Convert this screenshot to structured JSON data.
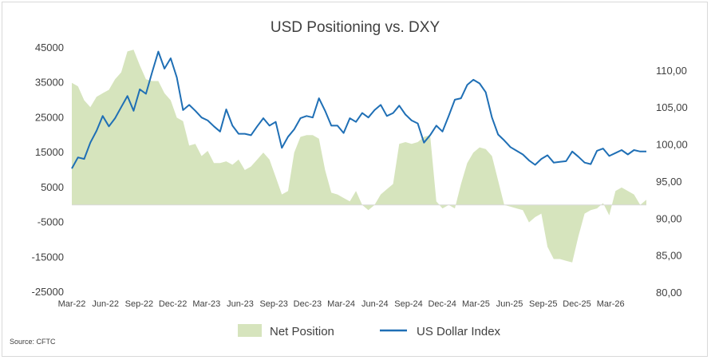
{
  "chart_data": {
    "type": "area+line",
    "title": "USD Positioning vs. DXY",
    "source": "Source: CFTC",
    "colors": {
      "net_position_fill": "#d6e4bd",
      "dxy_line": "#1f6fb5"
    },
    "left_axis": {
      "ylim": [
        -25000,
        45000
      ],
      "ticks": [
        "45000",
        "35000",
        "25000",
        "15000",
        "5000",
        "-5000",
        "-15000",
        "-25000"
      ]
    },
    "right_axis": {
      "ylim": [
        80,
        113
      ],
      "ticks": [
        "110,00",
        "105,00",
        "100,00",
        "95,00",
        "90,00",
        "85,00",
        "80,00"
      ]
    },
    "x_tick_labels": [
      "Mar-22",
      "Jun-22",
      "Sep-22",
      "Dec-22",
      "Mar-23",
      "Jun-23",
      "Sep-23",
      "Dec-23",
      "Mar-24",
      "Jun-24",
      "Sep-24",
      "Dec-24",
      "Mar-25",
      "Jun-25",
      "Sep-25",
      "Dec-25",
      "Mar-26"
    ],
    "grid": false,
    "legend": {
      "position": "bottom",
      "entries": [
        "Net Position",
        "US Dollar Index"
      ]
    },
    "series": [
      {
        "name": "Net Position",
        "axis": "left",
        "style": "area",
        "points": [
          [
            0,
            35000
          ],
          [
            1,
            34000
          ],
          [
            2,
            30000
          ],
          [
            3,
            28000
          ],
          [
            4,
            31000
          ],
          [
            5,
            32000
          ],
          [
            6,
            33000
          ],
          [
            7,
            36000
          ],
          [
            8,
            38000
          ],
          [
            9,
            44000
          ],
          [
            10,
            44500
          ],
          [
            11,
            40000
          ],
          [
            12,
            36000
          ],
          [
            13,
            35500
          ],
          [
            14,
            35500
          ],
          [
            15,
            32000
          ],
          [
            16,
            30000
          ],
          [
            17,
            25000
          ],
          [
            18,
            24000
          ],
          [
            19,
            17000
          ],
          [
            20,
            17500
          ],
          [
            21,
            14000
          ],
          [
            22,
            15500
          ],
          [
            23,
            12000
          ],
          [
            24,
            12000
          ],
          [
            25,
            12500
          ],
          [
            26,
            11500
          ],
          [
            27,
            13000
          ],
          [
            28,
            10000
          ],
          [
            29,
            11000
          ],
          [
            30,
            13000
          ],
          [
            31,
            15000
          ],
          [
            32,
            13000
          ],
          [
            33,
            8000
          ],
          [
            34,
            3000
          ],
          [
            35,
            4000
          ],
          [
            36,
            15000
          ],
          [
            37,
            19500
          ],
          [
            38,
            20000
          ],
          [
            39,
            20000
          ],
          [
            40,
            19000
          ],
          [
            41,
            10000
          ],
          [
            42,
            3500
          ],
          [
            43,
            3000
          ],
          [
            44,
            2000
          ],
          [
            45,
            1000
          ],
          [
            46,
            4000
          ],
          [
            47,
            0
          ],
          [
            48,
            -1500
          ],
          [
            49,
            0
          ],
          [
            50,
            3000
          ],
          [
            51,
            4500
          ],
          [
            52,
            6000
          ],
          [
            53,
            17500
          ],
          [
            54,
            18000
          ],
          [
            55,
            17500
          ],
          [
            56,
            18000
          ],
          [
            57,
            19500
          ],
          [
            58,
            20000
          ],
          [
            59,
            1000
          ],
          [
            60,
            -1000
          ],
          [
            61,
            0
          ],
          [
            62,
            -1000
          ],
          [
            63,
            6000
          ],
          [
            64,
            12000
          ],
          [
            65,
            15000
          ],
          [
            66,
            16500
          ],
          [
            67,
            16000
          ],
          [
            68,
            14000
          ],
          [
            69,
            7000
          ],
          [
            70,
            0
          ],
          [
            71,
            -500
          ],
          [
            72,
            -1000
          ],
          [
            73,
            -1500
          ],
          [
            74,
            -5000
          ],
          [
            75,
            -3500
          ],
          [
            76,
            -2500
          ],
          [
            77,
            -12000
          ],
          [
            78,
            -15500
          ],
          [
            79,
            -15500
          ],
          [
            80,
            -16000
          ],
          [
            81,
            -16500
          ],
          [
            82,
            -9000
          ],
          [
            83,
            -2500
          ],
          [
            84,
            -1500
          ],
          [
            85,
            -1000
          ],
          [
            86,
            500
          ],
          [
            87,
            -3000
          ],
          [
            88,
            4000
          ],
          [
            89,
            5000
          ],
          [
            90,
            4000
          ],
          [
            91,
            3000
          ],
          [
            92,
            0
          ],
          [
            93,
            1500
          ]
        ]
      },
      {
        "name": "US Dollar Index",
        "axis": "right",
        "style": "line",
        "points": [
          [
            0,
            96.7
          ],
          [
            1,
            98.2
          ],
          [
            2,
            98.0
          ],
          [
            3,
            100.2
          ],
          [
            4,
            101.8
          ],
          [
            5,
            103.8
          ],
          [
            6,
            102.4
          ],
          [
            7,
            103.5
          ],
          [
            8,
            105.0
          ],
          [
            9,
            106.5
          ],
          [
            10,
            104.5
          ],
          [
            11,
            107.4
          ],
          [
            12,
            106.8
          ],
          [
            13,
            109.7
          ],
          [
            14,
            112.5
          ],
          [
            15,
            110.2
          ],
          [
            16,
            111.6
          ],
          [
            17,
            109.0
          ],
          [
            18,
            104.6
          ],
          [
            19,
            105.3
          ],
          [
            20,
            104.5
          ],
          [
            21,
            103.6
          ],
          [
            22,
            103.2
          ],
          [
            23,
            102.4
          ],
          [
            24,
            101.7
          ],
          [
            25,
            104.7
          ],
          [
            26,
            102.5
          ],
          [
            27,
            101.4
          ],
          [
            28,
            101.4
          ],
          [
            29,
            101.2
          ],
          [
            30,
            102.4
          ],
          [
            31,
            103.5
          ],
          [
            32,
            102.5
          ],
          [
            33,
            103.0
          ],
          [
            34,
            99.5
          ],
          [
            35,
            101.0
          ],
          [
            36,
            102.0
          ],
          [
            37,
            103.5
          ],
          [
            38,
            103.8
          ],
          [
            39,
            103.6
          ],
          [
            40,
            106.2
          ],
          [
            41,
            104.5
          ],
          [
            42,
            102.5
          ],
          [
            43,
            102.5
          ],
          [
            44,
            101.5
          ],
          [
            45,
            103.5
          ],
          [
            46,
            103.0
          ],
          [
            47,
            104.2
          ],
          [
            48,
            103.6
          ],
          [
            49,
            104.6
          ],
          [
            50,
            105.3
          ],
          [
            51,
            103.8
          ],
          [
            52,
            104.2
          ],
          [
            53,
            105.2
          ],
          [
            54,
            104.0
          ],
          [
            55,
            103.2
          ],
          [
            56,
            102.8
          ],
          [
            57,
            100.2
          ],
          [
            58,
            101.2
          ],
          [
            59,
            102.5
          ],
          [
            60,
            101.7
          ],
          [
            61,
            103.8
          ],
          [
            62,
            106.0
          ],
          [
            63,
            106.2
          ],
          [
            64,
            108.0
          ],
          [
            65,
            108.7
          ],
          [
            66,
            108.2
          ],
          [
            67,
            107.0
          ],
          [
            68,
            103.6
          ],
          [
            69,
            101.3
          ],
          [
            70,
            100.5
          ],
          [
            71,
            99.6
          ],
          [
            72,
            99.1
          ],
          [
            73,
            98.6
          ],
          [
            74,
            97.8
          ],
          [
            75,
            97.2
          ],
          [
            76,
            98.0
          ],
          [
            77,
            98.5
          ],
          [
            78,
            97.5
          ],
          [
            79,
            97.6
          ],
          [
            80,
            97.7
          ],
          [
            81,
            99.0
          ],
          [
            82,
            98.3
          ],
          [
            83,
            97.5
          ],
          [
            84,
            97.3
          ],
          [
            85,
            99.1
          ],
          [
            86,
            99.4
          ],
          [
            87,
            98.4
          ],
          [
            88,
            98.8
          ],
          [
            89,
            99.2
          ],
          [
            90,
            98.6
          ],
          [
            91,
            99.2
          ],
          [
            92,
            99.0
          ],
          [
            93,
            99.0
          ]
        ]
      }
    ]
  }
}
